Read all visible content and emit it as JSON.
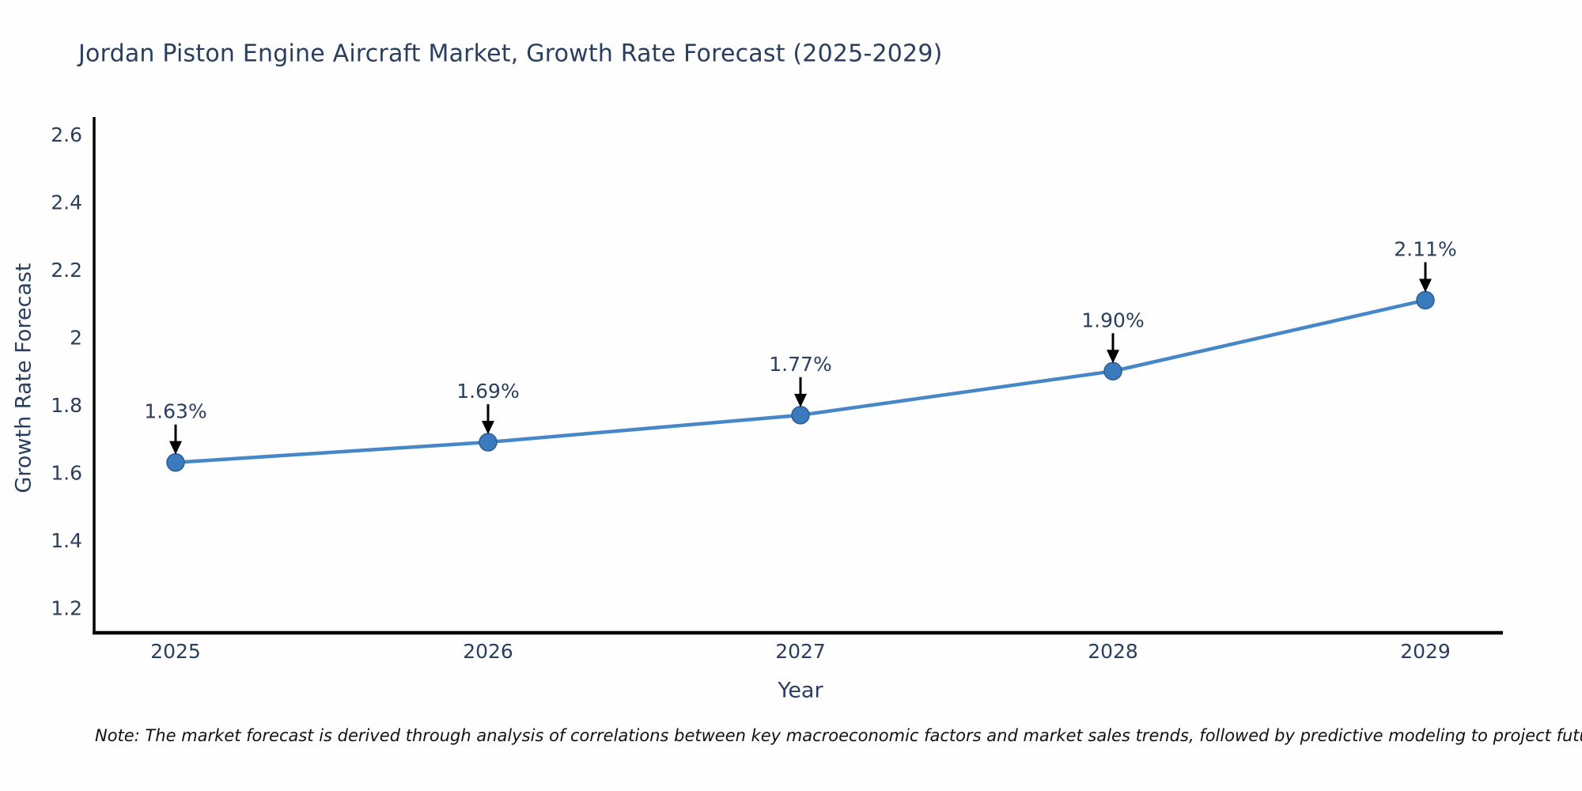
{
  "title": "Jordan Piston Engine Aircraft Market, Growth Rate Forecast (2025-2029)",
  "note": "Note: The market forecast is derived through analysis of correlations between key macroeconomic factors and market sales trends, followed by predictive modeling to project future sales",
  "colors": {
    "title_text": "#2a3f5f",
    "tick_text": "#2a3f5f",
    "annotation_text": "#2a3f5f",
    "axis_line": "#000000",
    "arrow": "#000000",
    "line": "#4687c7",
    "marker_fill": "#3b7abc",
    "marker_edge": "#2b5e97",
    "background": "#fefefe"
  },
  "chart_data": {
    "type": "line",
    "title": "Jordan Piston Engine Aircraft Market, Growth Rate Forecast (2025-2029)",
    "x": [
      2025,
      2026,
      2027,
      2028,
      2029
    ],
    "y": [
      1.63,
      1.69,
      1.77,
      1.9,
      2.11
    ],
    "point_labels": [
      "1.63%",
      "1.69%",
      "1.77%",
      "1.90%",
      "2.11%"
    ],
    "series_name": "Growth Rate Forecast",
    "xlabel": "Year",
    "ylabel": "Growth Rate Forecast",
    "x_tick_values": [
      2025,
      2026,
      2027,
      2028,
      2029
    ],
    "x_tick_labels": [
      "2025",
      "2026",
      "2027",
      "2028",
      "2029"
    ],
    "y_tick_values": [
      2.6,
      2.4,
      2.2,
      2.0,
      1.8,
      1.6,
      1.4,
      1.2
    ],
    "y_tick_labels": [
      "2.6",
      "2.4",
      "2.2",
      "2",
      "1.8",
      "1.6",
      "1.4",
      "1.2"
    ],
    "ylim": [
      1.12,
      2.65
    ],
    "xlim": [
      2024.74,
      2029.25
    ],
    "grid": false,
    "legend": false,
    "annotations_have_arrows": true
  }
}
